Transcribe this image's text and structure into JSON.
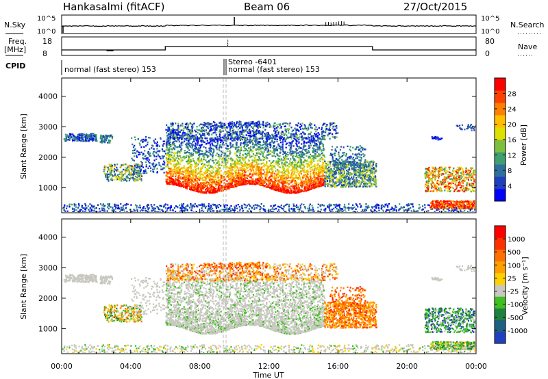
{
  "header": {
    "station": "Hankasalmi (fitACF)",
    "beam": "Beam 06",
    "date": "27/Oct/2015"
  },
  "panels": {
    "nsky_label": "N.Sky",
    "nsky_ticks": [
      "10^5",
      "10^0"
    ],
    "nsearch_label": "N.Search",
    "nsearch_ticks": [
      "10^5",
      "10^0"
    ],
    "freq_label": "Freq.",
    "freq_unit": "[MHz]",
    "freq_ticks": [
      "18",
      "8"
    ],
    "nave_label": "Nave",
    "nave_ticks": [
      "80",
      "0"
    ],
    "cpid_label": "CPID",
    "cpid_left": "normal (fast stereo) 153",
    "cpid_stereo": "Stereo -6401",
    "cpid_right": "normal (fast stereo) 153"
  },
  "chart_data": [
    {
      "type": "heatmap",
      "name": "power",
      "ylabel": "Slant Range [km]",
      "y_ticks": [
        "4000",
        "3000",
        "2000",
        "1000"
      ],
      "ylim": [
        180,
        4600
      ],
      "colorbar_label": "Power [dB]",
      "colorbar_ticks": [
        "28",
        "24",
        "20",
        "16",
        "12",
        "8",
        "4"
      ],
      "colors": [
        "#0000ff",
        "#1f3fbf",
        "#2f6f9f",
        "#3f9f6f",
        "#7fbf3f",
        "#dfdf00",
        "#ffbf00",
        "#ff8000",
        "#ff4000",
        "#ff0000"
      ]
    },
    {
      "type": "heatmap",
      "name": "velocity",
      "ylabel": "Slant Range [km]",
      "y_ticks": [
        "4000",
        "3000",
        "2000",
        "1000"
      ],
      "ylim": [
        180,
        4600
      ],
      "colorbar_label": "Velocity [m s⁻¹]",
      "colorbar_ticks": [
        "1000",
        "500",
        "100",
        "25",
        "-25",
        "-100",
        "-500",
        "-1000"
      ],
      "colors": [
        "#2040c0",
        "#206080",
        "#208040",
        "#40c020",
        "#c8c8c0",
        "#ffd000",
        "#ffa000",
        "#ff7000",
        "#ff3000",
        "#ff0000"
      ]
    }
  ],
  "x_axis": {
    "label": "Time UT",
    "ticks": [
      "00:00",
      "04:00",
      "08:00",
      "12:00",
      "16:00",
      "20:00",
      "00:00"
    ]
  }
}
